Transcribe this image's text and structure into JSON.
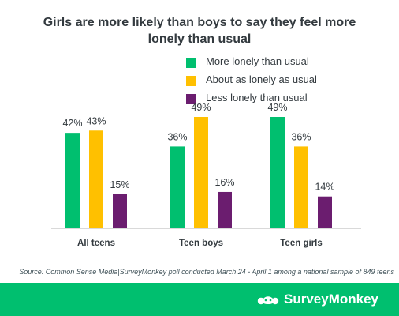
{
  "chart_data": {
    "type": "bar",
    "title": "Girls are more likely than boys to say they feel more lonely than usual",
    "title_lines": [
      "Girls are more likely than boys to say they feel more",
      "lonely than usual"
    ],
    "categories": [
      "All teens",
      "Teen boys",
      "Teen girls"
    ],
    "series": [
      {
        "name": "More lonely than usual",
        "color": "#00bf6f",
        "values": [
          42,
          36,
          49
        ],
        "labels": [
          "42%",
          "36%",
          "49%"
        ]
      },
      {
        "name": "About as lonely as usual",
        "color": "#ffc000",
        "values": [
          43,
          49,
          36
        ],
        "labels": [
          "43%",
          "49%",
          "36%"
        ]
      },
      {
        "name": "Less lonely than usual",
        "color": "#6b1d6f",
        "values": [
          15,
          16,
          14
        ],
        "labels": [
          "15%",
          "16%",
          "14%"
        ]
      }
    ],
    "ylim": [
      0,
      49
    ],
    "grid": false,
    "legend_position": "top-right"
  },
  "source": "Source: Common Sense Media|SurveyMonkey poll conducted March 24 - April 1 among a national sample of 849 teens",
  "brand": {
    "name": "SurveyMonkey",
    "icon": "surveymonkey-logo-icon",
    "background": "#00bf6f"
  }
}
